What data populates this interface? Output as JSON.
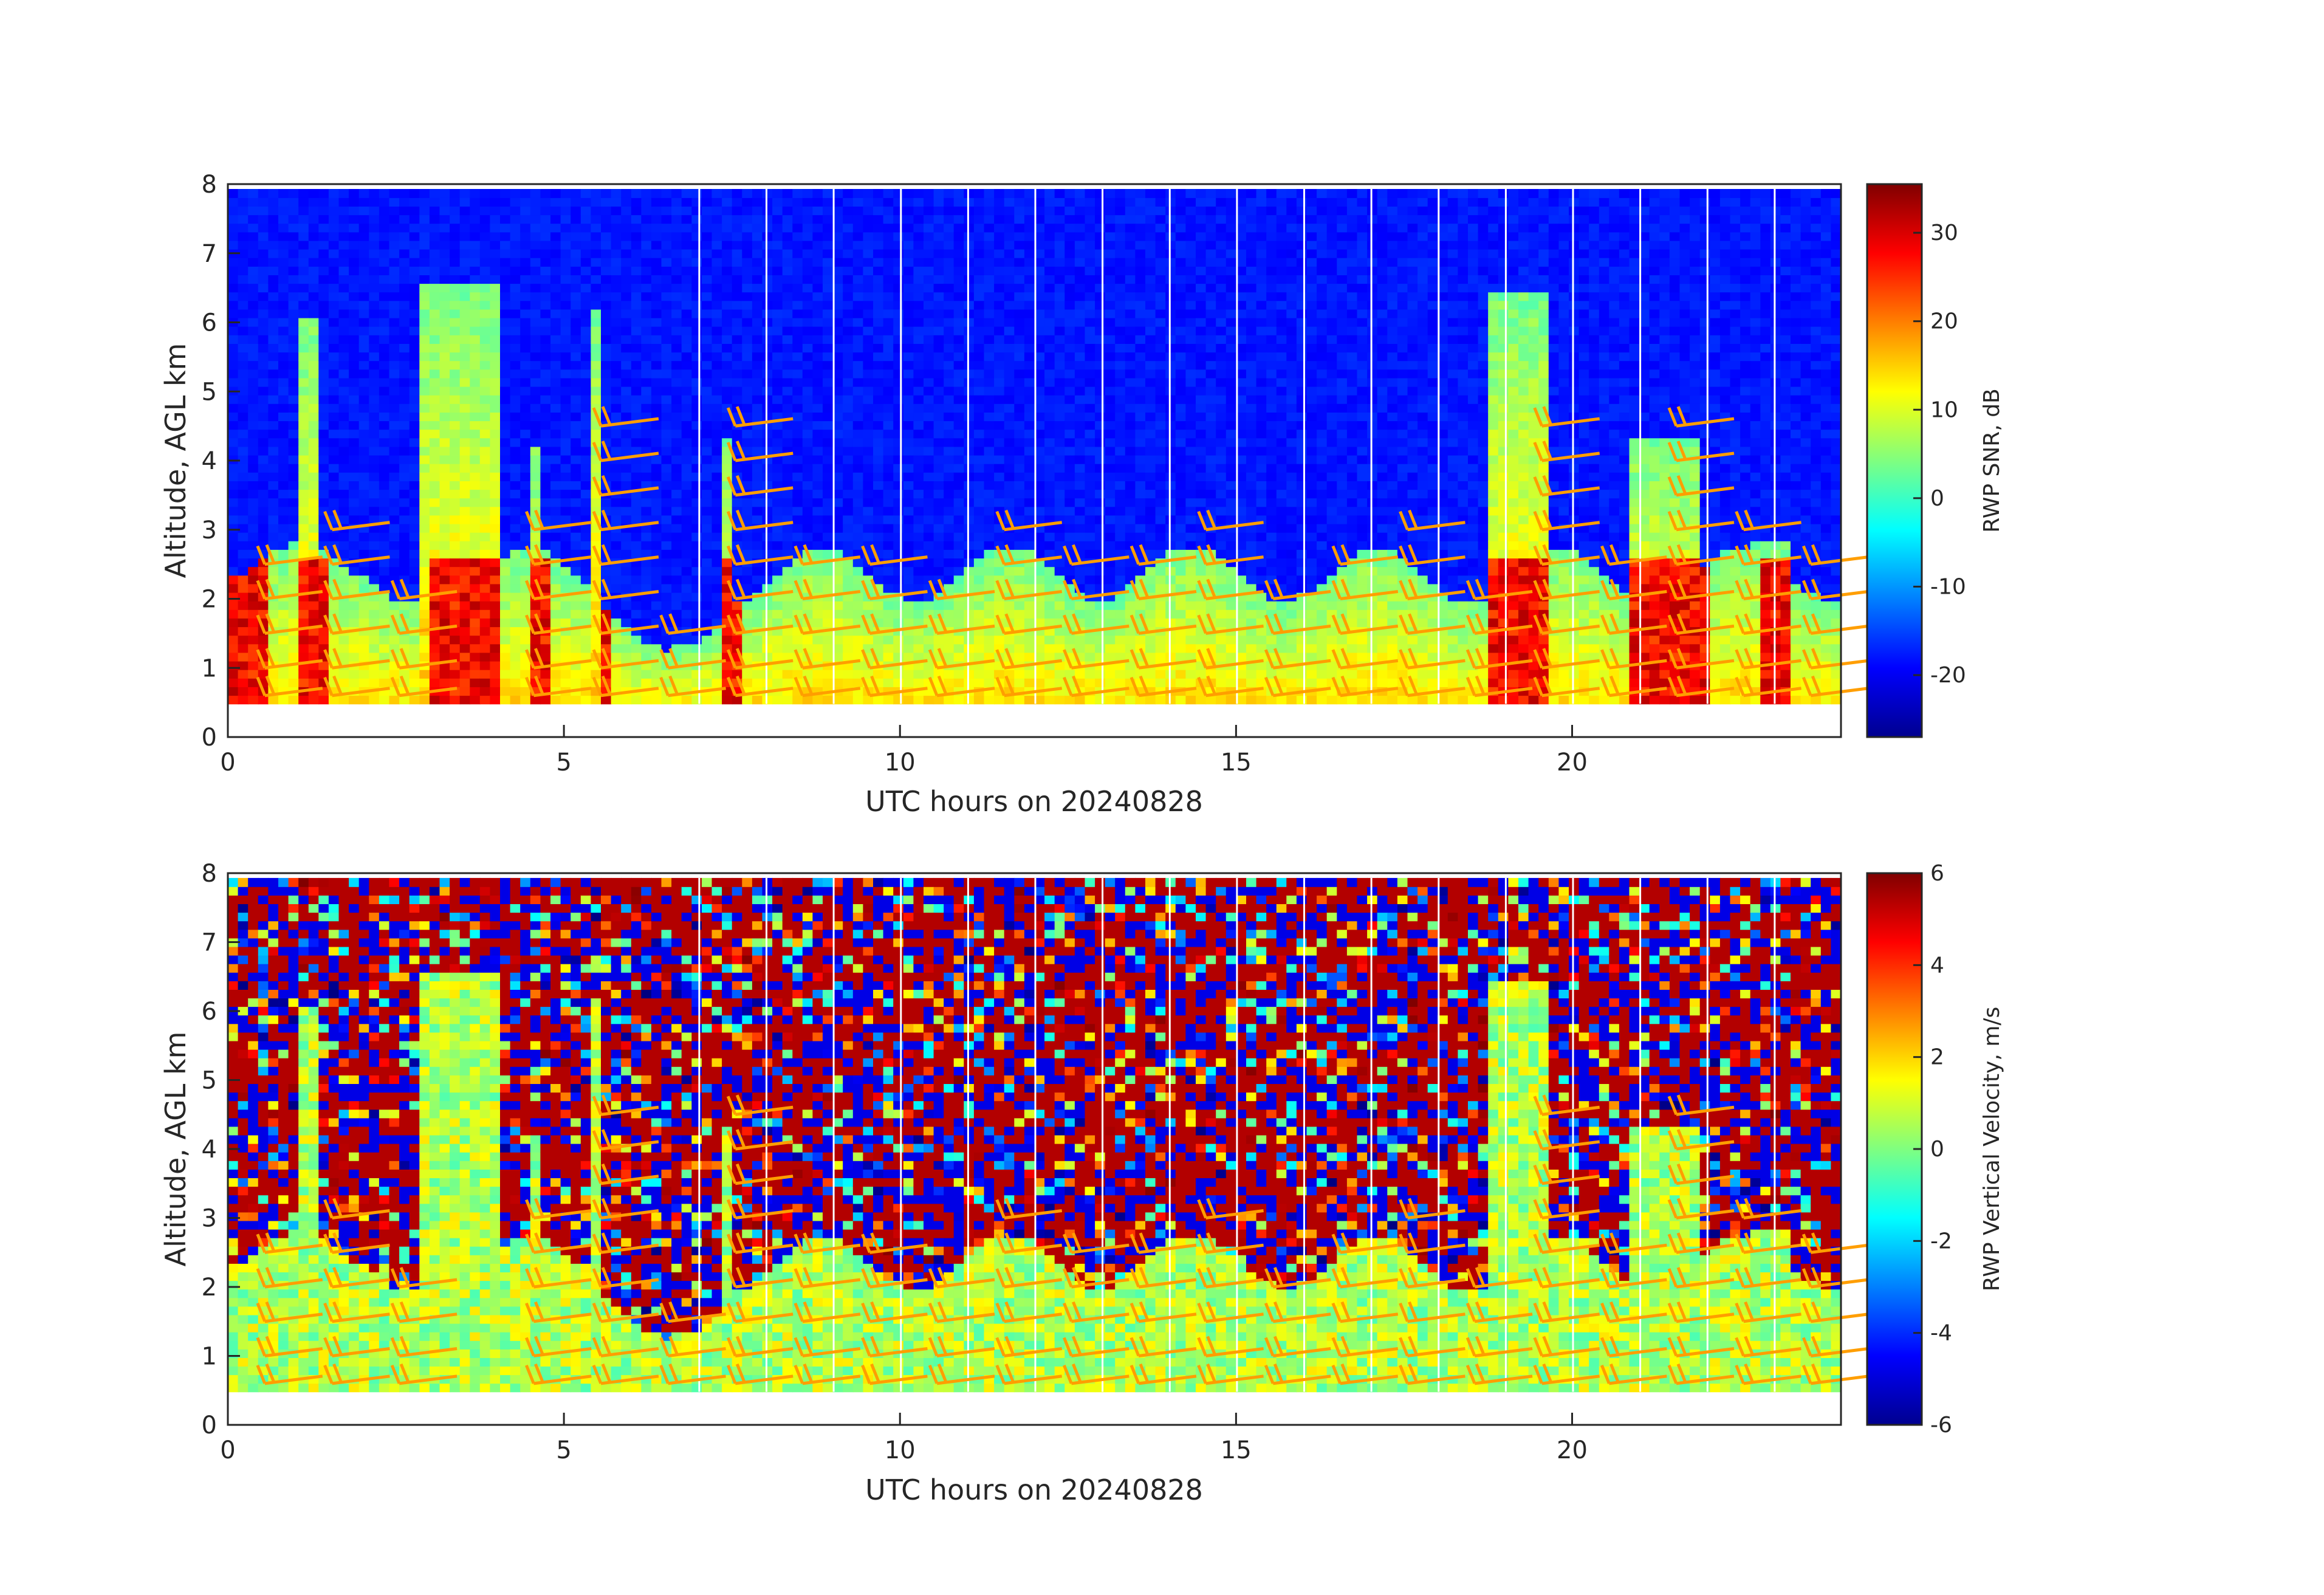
{
  "chart_data": [
    {
      "type": "heatmap",
      "title": "",
      "xlabel": "UTC hours on 20240828",
      "ylabel": "Altitude, AGL km",
      "xlim": [
        0,
        24
      ],
      "ylim": [
        0,
        8
      ],
      "x_ticks": [
        "0",
        "5",
        "10",
        "15",
        "20"
      ],
      "y_ticks": [
        "0",
        "1",
        "2",
        "3",
        "4",
        "5",
        "6",
        "7",
        "8"
      ],
      "colorbar": {
        "label": "RWP SNR, dB",
        "colormap": "jet",
        "range": [
          -27,
          35.5
        ],
        "ticks": [
          "-20",
          "-10",
          "0",
          "10",
          "20",
          "30"
        ]
      },
      "profiles": [
        {
          "t_start": 0.0,
          "t_end": 0.45,
          "top_km": 2.3
        },
        {
          "t_start": 1.0,
          "t_end": 1.35,
          "top_km": 6.0
        },
        {
          "t_start": 2.9,
          "t_end": 4.0,
          "top_km": 6.5
        },
        {
          "t_start": 4.5,
          "t_end": 4.7,
          "top_km": 4.2
        },
        {
          "t_start": 5.4,
          "t_end": 5.55,
          "top_km": 6.1
        },
        {
          "t_start": 7.3,
          "t_end": 7.5,
          "top_km": 4.3
        },
        {
          "t_start": 18.7,
          "t_end": 19.6,
          "top_km": 6.4
        },
        {
          "t_start": 20.8,
          "t_end": 21.9,
          "top_km": 4.3
        },
        {
          "t_start": 22.7,
          "t_end": 23.2,
          "top_km": 2.8
        }
      ],
      "wind_barb_times": [
        0.0,
        1.0,
        2.0,
        4.0,
        5.0,
        6.0,
        7.0,
        8.0,
        9.0,
        10.0,
        11.0,
        12.0,
        13.0,
        14.0,
        15.0,
        16.0,
        17.0,
        18.0,
        19.0,
        20.0,
        21.0,
        22.0,
        23.0
      ],
      "wind_barb_altitudes_km": [
        0.6,
        1.0,
        1.5,
        2.0,
        2.5,
        3.0,
        3.5,
        4.0,
        4.5
      ],
      "barb_color": "#ff9e00"
    },
    {
      "type": "heatmap",
      "title": "",
      "xlabel": "UTC hours on 20240828",
      "ylabel": "Altitude, AGL km",
      "xlim": [
        0,
        24
      ],
      "ylim": [
        0,
        8
      ],
      "x_ticks": [
        "0",
        "5",
        "10",
        "15",
        "20"
      ],
      "y_ticks": [
        "0",
        "1",
        "2",
        "3",
        "4",
        "5",
        "6",
        "7",
        "8"
      ],
      "colorbar": {
        "label": "RWP Vertical Velocity, m/s",
        "colormap": "jet",
        "range": [
          -6,
          6
        ],
        "ticks": [
          "-6",
          "-4",
          "-2",
          "0",
          "2",
          "4",
          "6"
        ]
      },
      "wind_barb_times": [
        0.0,
        1.0,
        2.0,
        4.0,
        5.0,
        6.0,
        7.0,
        8.0,
        9.0,
        10.0,
        11.0,
        12.0,
        13.0,
        14.0,
        15.0,
        16.0,
        17.0,
        18.0,
        19.0,
        20.0,
        21.0,
        22.0,
        23.0
      ],
      "wind_barb_altitudes_km": [
        0.6,
        1.0,
        1.5,
        2.0,
        2.5,
        3.0,
        3.5,
        4.0,
        4.5
      ],
      "barb_color": "#ff9e00"
    }
  ]
}
